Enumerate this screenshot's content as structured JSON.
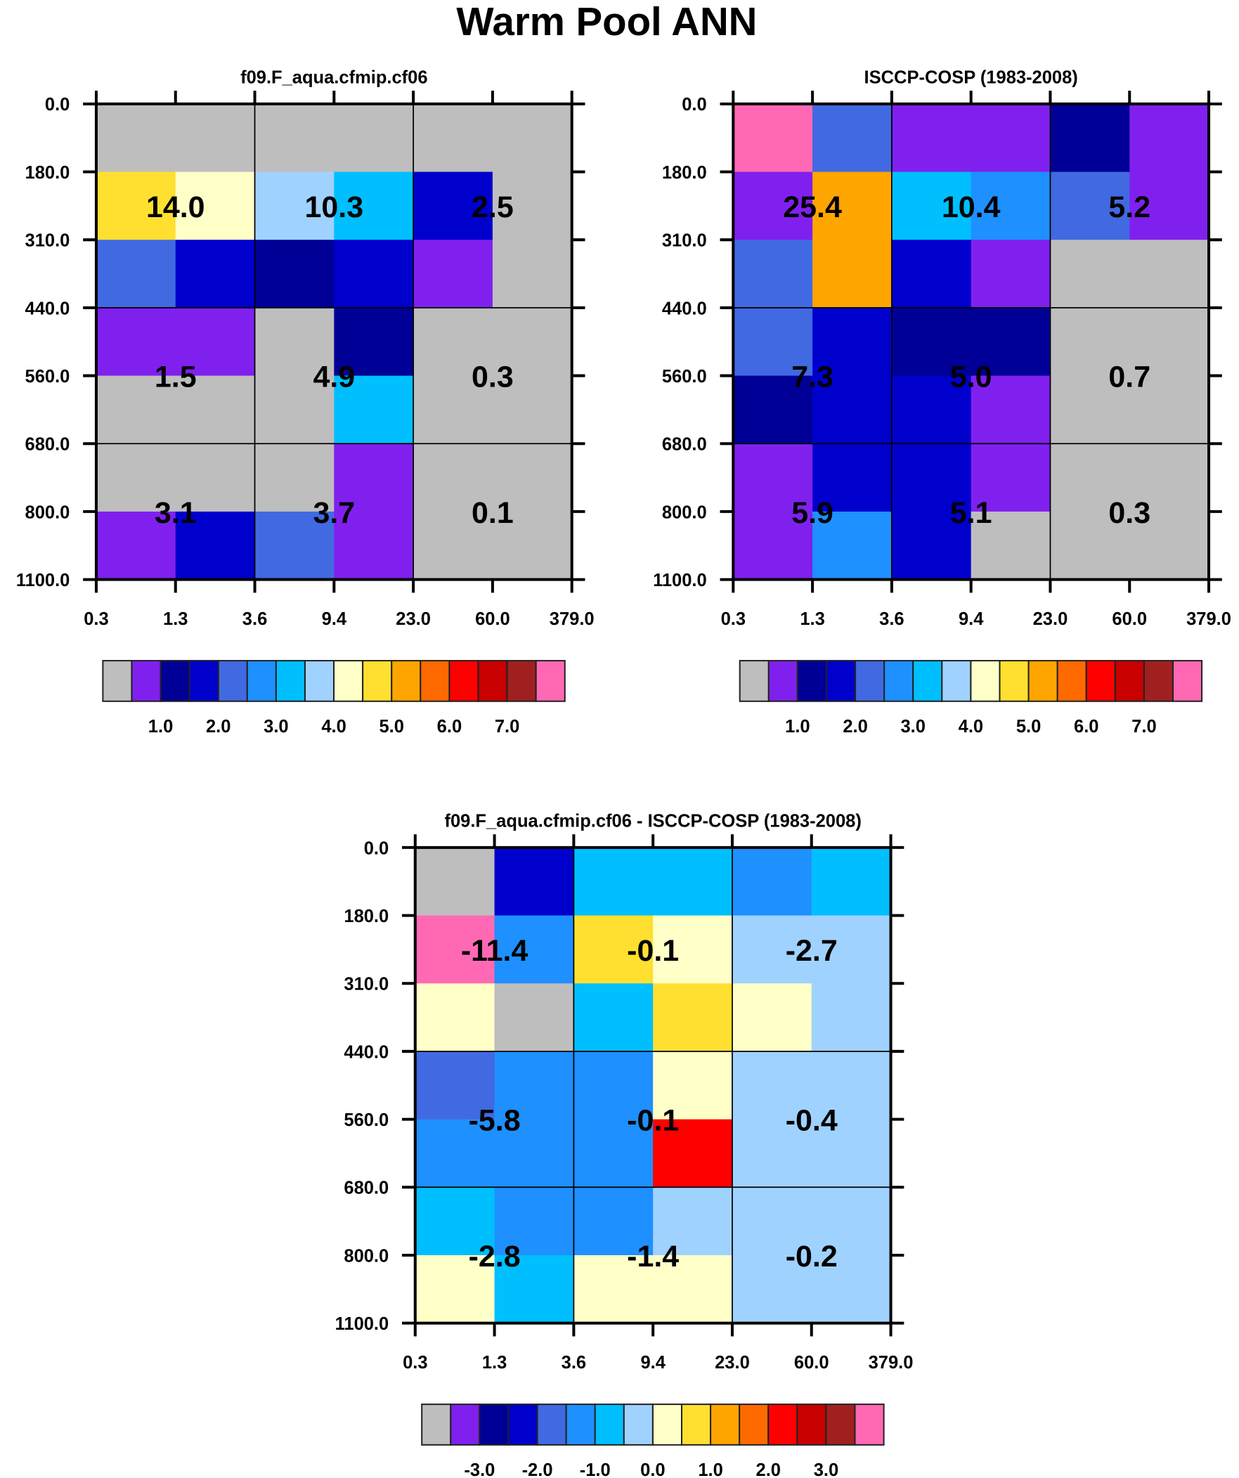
{
  "title": "Warm Pool ANN",
  "palette": [
    "#BEBEBE",
    "#8020EE",
    "#000096",
    "#0000CD",
    "#4169E1",
    "#1E90FF",
    "#00BFFF",
    "#A0D2FF",
    "#FFFFC8",
    "#FFE030",
    "#FFA500",
    "#FF6A00",
    "#FF0000",
    "#C80000",
    "#A02020",
    "#FF69B4"
  ],
  "chart_data": [
    {
      "type": "heatmap",
      "title": "f09.F_aqua.cfmip.cf06",
      "xticks": [
        "0.3",
        "1.3",
        "3.6",
        "9.4",
        "23.0",
        "60.0",
        "379.0"
      ],
      "yticks": [
        "0.0",
        "180.0",
        "310.0",
        "440.0",
        "560.0",
        "680.0",
        "800.0",
        "1100.0"
      ],
      "color_index": [
        [
          0,
          0,
          0,
          0,
          0,
          0
        ],
        [
          9,
          8,
          7,
          6,
          3,
          0
        ],
        [
          4,
          3,
          2,
          3,
          1,
          0
        ],
        [
          1,
          1,
          0,
          2,
          0,
          0
        ],
        [
          0,
          0,
          0,
          6,
          0,
          0
        ],
        [
          0,
          0,
          0,
          1,
          0,
          0
        ],
        [
          1,
          3,
          4,
          1,
          0,
          0
        ]
      ],
      "cell_labels": [
        [
          "14.0",
          "10.3",
          "2.5"
        ],
        [
          "1.5",
          "4.9",
          "0.3"
        ],
        [
          "3.1",
          "3.7",
          "0.1"
        ]
      ],
      "colorbar_labels": [
        "1.0",
        "2.0",
        "3.0",
        "4.0",
        "5.0",
        "6.0",
        "7.0"
      ]
    },
    {
      "type": "heatmap",
      "title": "ISCCP-COSP (1983-2008)",
      "xticks": [
        "0.3",
        "1.3",
        "3.6",
        "9.4",
        "23.0",
        "60.0",
        "379.0"
      ],
      "yticks": [
        "0.0",
        "180.0",
        "310.0",
        "440.0",
        "560.0",
        "680.0",
        "800.0",
        "1100.0"
      ],
      "color_index": [
        [
          15,
          4,
          1,
          1,
          2,
          1
        ],
        [
          1,
          10,
          6,
          5,
          4,
          1
        ],
        [
          4,
          10,
          3,
          1,
          0,
          0
        ],
        [
          4,
          3,
          2,
          2,
          0,
          0
        ],
        [
          2,
          3,
          3,
          1,
          0,
          0
        ],
        [
          1,
          3,
          3,
          1,
          0,
          0
        ],
        [
          1,
          5,
          3,
          0,
          0,
          0
        ]
      ],
      "cell_labels": [
        [
          "25.4",
          "10.4",
          "5.2"
        ],
        [
          "7.3",
          "5.0",
          "0.7"
        ],
        [
          "5.9",
          "5.1",
          "0.3"
        ]
      ],
      "colorbar_labels": [
        "1.0",
        "2.0",
        "3.0",
        "4.0",
        "5.0",
        "6.0",
        "7.0"
      ]
    },
    {
      "type": "heatmap",
      "title": "f09.F_aqua.cfmip.cf06 - ISCCP-COSP (1983-2008)",
      "xticks": [
        "0.3",
        "1.3",
        "3.6",
        "9.4",
        "23.0",
        "60.0",
        "379.0"
      ],
      "yticks": [
        "0.0",
        "180.0",
        "310.0",
        "440.0",
        "560.0",
        "680.0",
        "800.0",
        "1100.0"
      ],
      "color_index": [
        [
          0,
          3,
          6,
          6,
          5,
          6
        ],
        [
          15,
          5,
          9,
          8,
          7,
          7
        ],
        [
          8,
          0,
          6,
          9,
          8,
          7
        ],
        [
          4,
          5,
          5,
          8,
          7,
          7
        ],
        [
          5,
          5,
          5,
          12,
          7,
          7
        ],
        [
          6,
          5,
          5,
          7,
          7,
          7
        ],
        [
          8,
          6,
          8,
          8,
          7,
          7
        ]
      ],
      "cell_labels": [
        [
          "-11.4",
          "-0.1",
          "-2.7"
        ],
        [
          "-5.8",
          "-0.1",
          "-0.4"
        ],
        [
          "-2.8",
          "-1.4",
          "-0.2"
        ]
      ],
      "colorbar_labels": [
        "-3.0",
        "-2.0",
        "-1.0",
        "0.0",
        "1.0",
        "2.0",
        "3.0"
      ]
    }
  ]
}
